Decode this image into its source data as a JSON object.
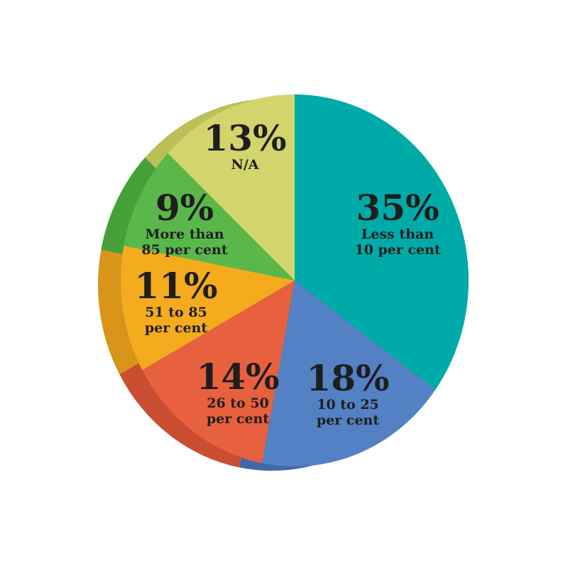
{
  "chart_data": {
    "type": "pie",
    "title": "",
    "slices": [
      {
        "percent_label": "35%",
        "value": 35,
        "label_lines": [
          "Less than",
          "10 per cent"
        ],
        "color": "#00aaa8",
        "side_color": "#008f8c"
      },
      {
        "percent_label": "18%",
        "value": 18,
        "label_lines": [
          "10 to 25",
          "per cent"
        ],
        "color": "#5480c4",
        "side_color": "#4169a8"
      },
      {
        "percent_label": "14%",
        "value": 14,
        "label_lines": [
          "26 to 50",
          "per cent"
        ],
        "color": "#e8613e",
        "side_color": "#c94d30"
      },
      {
        "percent_label": "11%",
        "value": 11,
        "label_lines": [
          "51 to 85",
          "per cent"
        ],
        "color": "#f4ab1e",
        "side_color": "#d8951a"
      },
      {
        "percent_label": "9%",
        "value": 9,
        "label_lines": [
          "More than",
          "85 per cent"
        ],
        "color": "#5ab74a",
        "side_color": "#46a038"
      },
      {
        "percent_label": "13%",
        "value": 13,
        "label_lines": [
          "N/A"
        ],
        "color": "#d3d56c",
        "side_color": "#bcbf58"
      }
    ],
    "legend": "none",
    "start_angle": "top, clockwise"
  }
}
